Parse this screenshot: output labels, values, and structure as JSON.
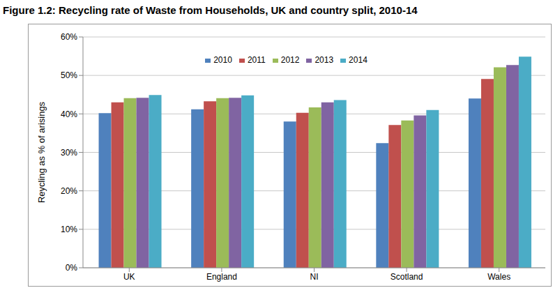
{
  "chart_data": {
    "type": "bar",
    "title": "Figure 1.2: Recycling rate of Waste from Households, UK and country split, 2010-14",
    "y_label": "Reycling as % of arisings",
    "categories": [
      "UK",
      "England",
      "NI",
      "Scotland",
      "Wales"
    ],
    "series": [
      {
        "name": "2010",
        "color": "#4f81bd",
        "values": [
          40.2,
          41.2,
          38.0,
          32.4,
          44.0
        ]
      },
      {
        "name": "2011",
        "color": "#c0504d",
        "values": [
          43.0,
          43.3,
          40.3,
          37.1,
          49.1
        ]
      },
      {
        "name": "2012",
        "color": "#9bbb59",
        "values": [
          44.1,
          44.1,
          41.7,
          38.3,
          52.1
        ]
      },
      {
        "name": "2013",
        "color": "#8064a2",
        "values": [
          44.2,
          44.2,
          43.0,
          39.6,
          52.7
        ]
      },
      {
        "name": "2014",
        "color": "#4bacc6",
        "values": [
          44.9,
          44.8,
          43.6,
          41.0,
          54.9
        ]
      }
    ],
    "ylim": [
      0,
      60
    ],
    "yticks": [
      {
        "value": 0,
        "label": "0%"
      },
      {
        "value": 10,
        "label": "10%"
      },
      {
        "value": 20,
        "label": "20%"
      },
      {
        "value": 30,
        "label": "30%"
      },
      {
        "value": 40,
        "label": "40%"
      },
      {
        "value": 50,
        "label": "50%"
      },
      {
        "value": 60,
        "label": "60%"
      }
    ],
    "grid": true,
    "legend": "top"
  }
}
